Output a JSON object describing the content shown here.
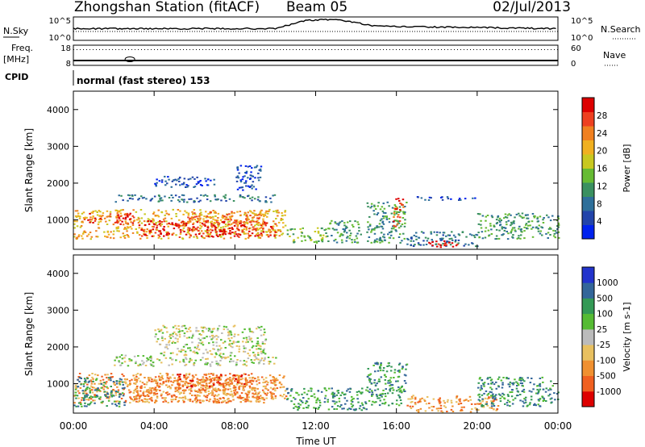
{
  "header": {
    "title": "Zhongshan Station (fitACF)",
    "beam": "Beam 05",
    "date": "02/Jul/2013"
  },
  "panels": {
    "nsky_label": "N.Sky",
    "nsky_ticks": [
      "10^5",
      "10^0"
    ],
    "nsearch_label": "N.Search",
    "nsearch_ticks": [
      "10^5",
      "10^0"
    ],
    "freq_label": "Freq.",
    "freq_unit": "[MHz]",
    "freq_ticks": [
      "18",
      "8"
    ],
    "nave_label": "Nave",
    "nave_ticks": [
      "60",
      "0"
    ],
    "cpid_label": "CPID",
    "cpid_text": "normal (fast stereo) 153"
  },
  "x_axis": {
    "label": "Time UT",
    "ticks": [
      "00:00",
      "04:00",
      "08:00",
      "12:00",
      "16:00",
      "20:00",
      "00:00"
    ]
  },
  "colors": {
    "power": [
      "#0022ee",
      "#2244aa",
      "#2e6f9a",
      "#3a9060",
      "#66bb33",
      "#c8c820",
      "#f0b020",
      "#f08020",
      "#ee4020",
      "#dd0000"
    ],
    "velocity": [
      "#2233cc",
      "#336699",
      "#339955",
      "#55bb33",
      "#bbbbbb",
      "#e8c060",
      "#f09030",
      "#f06020",
      "#dd0000"
    ]
  },
  "chart_data": [
    {
      "type": "heatmap",
      "name": "power",
      "ylabel": "Slant Range [km]",
      "yticks": [
        "1000",
        "2000",
        "3000",
        "4000"
      ],
      "ylim": [
        200,
        4500
      ],
      "colorbar_label": "Power [dB]",
      "colorbar_ticks": [
        "4",
        "8",
        "12",
        "16",
        "20",
        "24",
        "28"
      ],
      "colorbar_range": [
        0,
        32
      ],
      "regions": [
        {
          "t": [
            0.0,
            10.5
          ],
          "r": [
            500,
            1300
          ],
          "level": 6
        },
        {
          "t": [
            0.5,
            3.0
          ],
          "r": [
            900,
            1200
          ],
          "level": 8
        },
        {
          "t": [
            3.2,
            10.0
          ],
          "r": [
            550,
            1000
          ],
          "level": 9
        },
        {
          "t": [
            5.5,
            9.5
          ],
          "r": [
            900,
            1250
          ],
          "level": 7
        },
        {
          "t": [
            2.0,
            10.0
          ],
          "r": [
            1500,
            1700
          ],
          "level": 2
        },
        {
          "t": [
            4.0,
            7.0
          ],
          "r": [
            1900,
            2200
          ],
          "level": 1
        },
        {
          "t": [
            8.0,
            9.3
          ],
          "r": [
            1800,
            2500
          ],
          "level": 1
        },
        {
          "t": [
            10.5,
            12.5
          ],
          "r": [
            400,
            800
          ],
          "level": 4
        },
        {
          "t": [
            12.5,
            14.2
          ],
          "r": [
            400,
            1000
          ],
          "level": 3
        },
        {
          "t": [
            14.5,
            16.5
          ],
          "r": [
            400,
            1500
          ],
          "level": 3
        },
        {
          "t": [
            15.8,
            16.3
          ],
          "r": [
            800,
            1600
          ],
          "level": 8
        },
        {
          "t": [
            16.5,
            20.0
          ],
          "r": [
            300,
            700
          ],
          "level": 2
        },
        {
          "t": [
            17.5,
            19.0
          ],
          "r": [
            250,
            450
          ],
          "level": 9
        },
        {
          "t": [
            20.0,
            24.0
          ],
          "r": [
            500,
            1200
          ],
          "level": 3
        },
        {
          "t": [
            17.0,
            20.0
          ],
          "r": [
            1550,
            1650
          ],
          "level": 1
        }
      ]
    },
    {
      "type": "heatmap",
      "name": "velocity",
      "ylabel": "Slant Range [km]",
      "yticks": [
        "1000",
        "2000",
        "3000",
        "4000"
      ],
      "ylim": [
        200,
        4500
      ],
      "colorbar_label": "Velocity [m s-1]",
      "colorbar_ticks": [
        "1000",
        "500",
        "100",
        "25",
        "-25",
        "-100",
        "-500",
        "-1000"
      ],
      "regions": [
        {
          "t": [
            0.0,
            10.5
          ],
          "r": [
            500,
            1300
          ],
          "level": 6
        },
        {
          "t": [
            0.0,
            2.5
          ],
          "r": [
            400,
            1200
          ],
          "level": 2
        },
        {
          "t": [
            3.0,
            10.0
          ],
          "r": [
            500,
            1200
          ],
          "level": 6
        },
        {
          "t": [
            5.0,
            9.0
          ],
          "r": [
            900,
            1300
          ],
          "level": 7
        },
        {
          "t": [
            2.0,
            10.0
          ],
          "r": [
            1500,
            1800
          ],
          "level": 4
        },
        {
          "t": [
            4.0,
            9.5
          ],
          "r": [
            1800,
            2600
          ],
          "level": 4
        },
        {
          "t": [
            10.5,
            14.5
          ],
          "r": [
            300,
            900
          ],
          "level": 2
        },
        {
          "t": [
            14.5,
            16.5
          ],
          "r": [
            400,
            1600
          ],
          "level": 2
        },
        {
          "t": [
            16.5,
            21.0
          ],
          "r": [
            250,
            700
          ],
          "level": 6
        },
        {
          "t": [
            20.0,
            24.0
          ],
          "r": [
            400,
            1200
          ],
          "level": 2
        }
      ]
    }
  ],
  "summary_series": {
    "nsky_hump": {
      "t": [
        0,
        10,
        11.5,
        13,
        14,
        15,
        24
      ],
      "v": [
        0.5,
        0.5,
        0.85,
        0.9,
        0.75,
        0.6,
        0.5
      ]
    },
    "freq_blip": {
      "t": 2.8,
      "v": 0.3
    },
    "nave_level": 0.78
  }
}
